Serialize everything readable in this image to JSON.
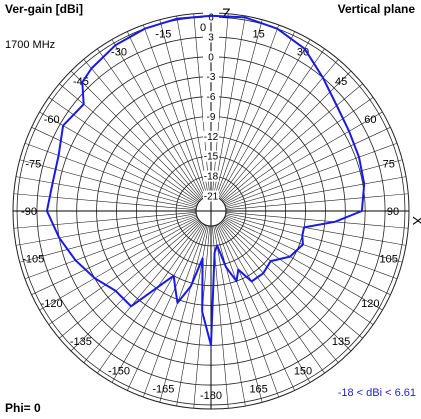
{
  "header": {
    "title_left": "Ver-gain [dBi]",
    "title_right": "Vertical plane",
    "frequency": "1700 MHz"
  },
  "footer": {
    "phi": "Phi= 0",
    "range": "-18 < dBi < 6.61"
  },
  "colors": {
    "pattern": "#1a1ae6",
    "grid": "#222222",
    "range_text": "#2323d0"
  },
  "chart_data": {
    "type": "polar",
    "title": "Vertical plane",
    "ylabel": "Ver-gain [dBi]",
    "frequency": "1700 MHz",
    "phi": "Phi= 0",
    "range_text": "-18 < dBi < 6.61",
    "r_min": -21,
    "r_max": 6.61,
    "rings": [
      6,
      3,
      0,
      -3,
      -6,
      -9,
      -12,
      -15,
      -18,
      -21
    ],
    "ring_labels": [
      "6",
      "3",
      "0",
      "-3",
      "-6",
      "-9",
      "-12",
      "-15",
      "-18",
      "-21"
    ],
    "angle_ticks": [
      0,
      15,
      30,
      45,
      60,
      75,
      90,
      105,
      120,
      135,
      150,
      165,
      180,
      -165,
      -150,
      -135,
      -120,
      -105,
      -90,
      -75,
      -60,
      -45,
      -30,
      -15
    ],
    "angle_labels": [
      "0",
      "15",
      "30",
      "45",
      "60",
      "75",
      "90",
      "105",
      "120",
      "135",
      "150",
      "165",
      "-180",
      "-165",
      "-150",
      "-135",
      "-120",
      "-105",
      "-90",
      "-75",
      "-60",
      "-45",
      "-30",
      "-15"
    ],
    "axis_labels": {
      "top": "Z",
      "right": "X"
    },
    "grid": true,
    "series": [
      {
        "color": "#1a1ae6",
        "points": [
          [
            0,
            6.2
          ],
          [
            10,
            6.4
          ],
          [
            20,
            6.0
          ],
          [
            30,
            5.0
          ],
          [
            40,
            3.0
          ],
          [
            50,
            1.5
          ],
          [
            60,
            0.8
          ],
          [
            70,
            0.5
          ],
          [
            80,
            0.2
          ],
          [
            90,
            -0.5
          ],
          [
            95,
            -4.5
          ],
          [
            100,
            -9.0
          ],
          [
            105,
            -9.0
          ],
          [
            110,
            -8.5
          ],
          [
            120,
            -9.5
          ],
          [
            130,
            -11.5
          ],
          [
            140,
            -11.0
          ],
          [
            150,
            -11.0
          ],
          [
            155,
            -13.5
          ],
          [
            160,
            -12.0
          ],
          [
            165,
            -14.5
          ],
          [
            170,
            -18.0
          ],
          [
            175,
            -17.0
          ],
          [
            180,
            -3.0
          ],
          [
            185,
            -8.0
          ],
          [
            190,
            -16.0
          ],
          [
            195,
            -11.5
          ],
          [
            200,
            -8.5
          ],
          [
            205,
            -10.5
          ],
          [
            210,
            -12.0
          ],
          [
            220,
            -4.5
          ],
          [
            230,
            -4.5
          ],
          [
            240,
            -3.0
          ],
          [
            250,
            -1.5
          ],
          [
            260,
            0.0
          ],
          [
            270,
            1.5
          ],
          [
            280,
            1.0
          ],
          [
            290,
            1.2
          ],
          [
            300,
            2.5
          ],
          [
            310,
            1.8
          ],
          [
            315,
            4.2
          ],
          [
            320,
            4.8
          ],
          [
            330,
            5.6
          ],
          [
            340,
            6.0
          ],
          [
            350,
            6.2
          ]
        ]
      }
    ]
  }
}
